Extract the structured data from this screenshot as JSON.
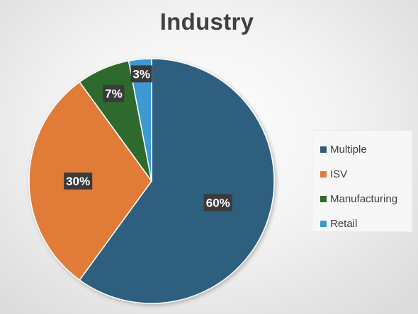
{
  "chart_data": {
    "type": "pie",
    "title": "Industry",
    "categories": [
      "Multiple",
      "ISV",
      "Manufacturing",
      "Retail"
    ],
    "values": [
      60,
      30,
      7,
      3
    ],
    "data_labels": [
      "60%",
      "30%",
      "7%",
      "3%"
    ],
    "colors": [
      "#2e5e7e",
      "#e07b39",
      "#2e6b2e",
      "#3d9ad1"
    ],
    "legend_position": "right",
    "label_style": "dark-box"
  }
}
